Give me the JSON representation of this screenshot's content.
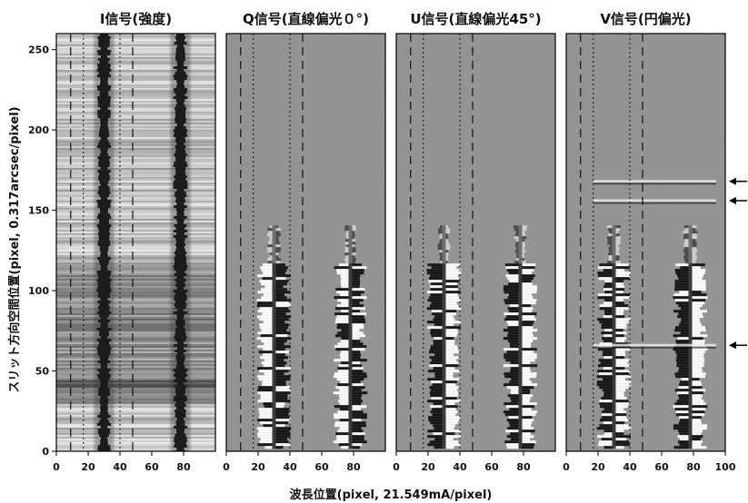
{
  "chart_data": {
    "type": "heatmap",
    "xlabel": "波長位置(pixel, 21.549mA/pixel)",
    "ylabel": "スリット方向空間位置(pixel, 0.317arcsec/pixel)",
    "xlim": [
      0,
      100
    ],
    "ylim": [
      0,
      260
    ],
    "x_ticks": [
      0,
      20,
      40,
      60,
      80
    ],
    "x_ticks_last_panel": [
      0,
      20,
      40,
      60,
      80,
      100
    ],
    "y_ticks": [
      0,
      50,
      100,
      150,
      200,
      250
    ],
    "colormap": "grayscale",
    "panels": [
      {
        "title": "I信号(強度)",
        "background": "#bdbdbd",
        "lines_x": [
          30,
          78
        ],
        "dashed_x": [
          9,
          48
        ],
        "dotted_x": [
          17,
          40
        ]
      },
      {
        "title": "Q信号(直線偏光０°)",
        "background": "#8f8f8f",
        "lines_x": [
          30,
          78
        ],
        "dashed_x": [
          9,
          48
        ],
        "dotted_x": [
          17,
          40
        ]
      },
      {
        "title": "U信号(直線偏光45°)",
        "background": "#8f8f8f",
        "lines_x": [
          30,
          78
        ],
        "dashed_x": [
          9,
          48
        ],
        "dotted_x": [
          17,
          40
        ]
      },
      {
        "title": "V信号(円偏光)",
        "background": "#8f8f8f",
        "lines_x": [
          30,
          78
        ],
        "dashed_x": [
          9,
          48
        ],
        "dotted_x": [
          17,
          40
        ]
      }
    ],
    "arrows_y": [
      168,
      156,
      66
    ],
    "strong_signal_y_range": [
      0,
      118
    ],
    "grid": false
  }
}
